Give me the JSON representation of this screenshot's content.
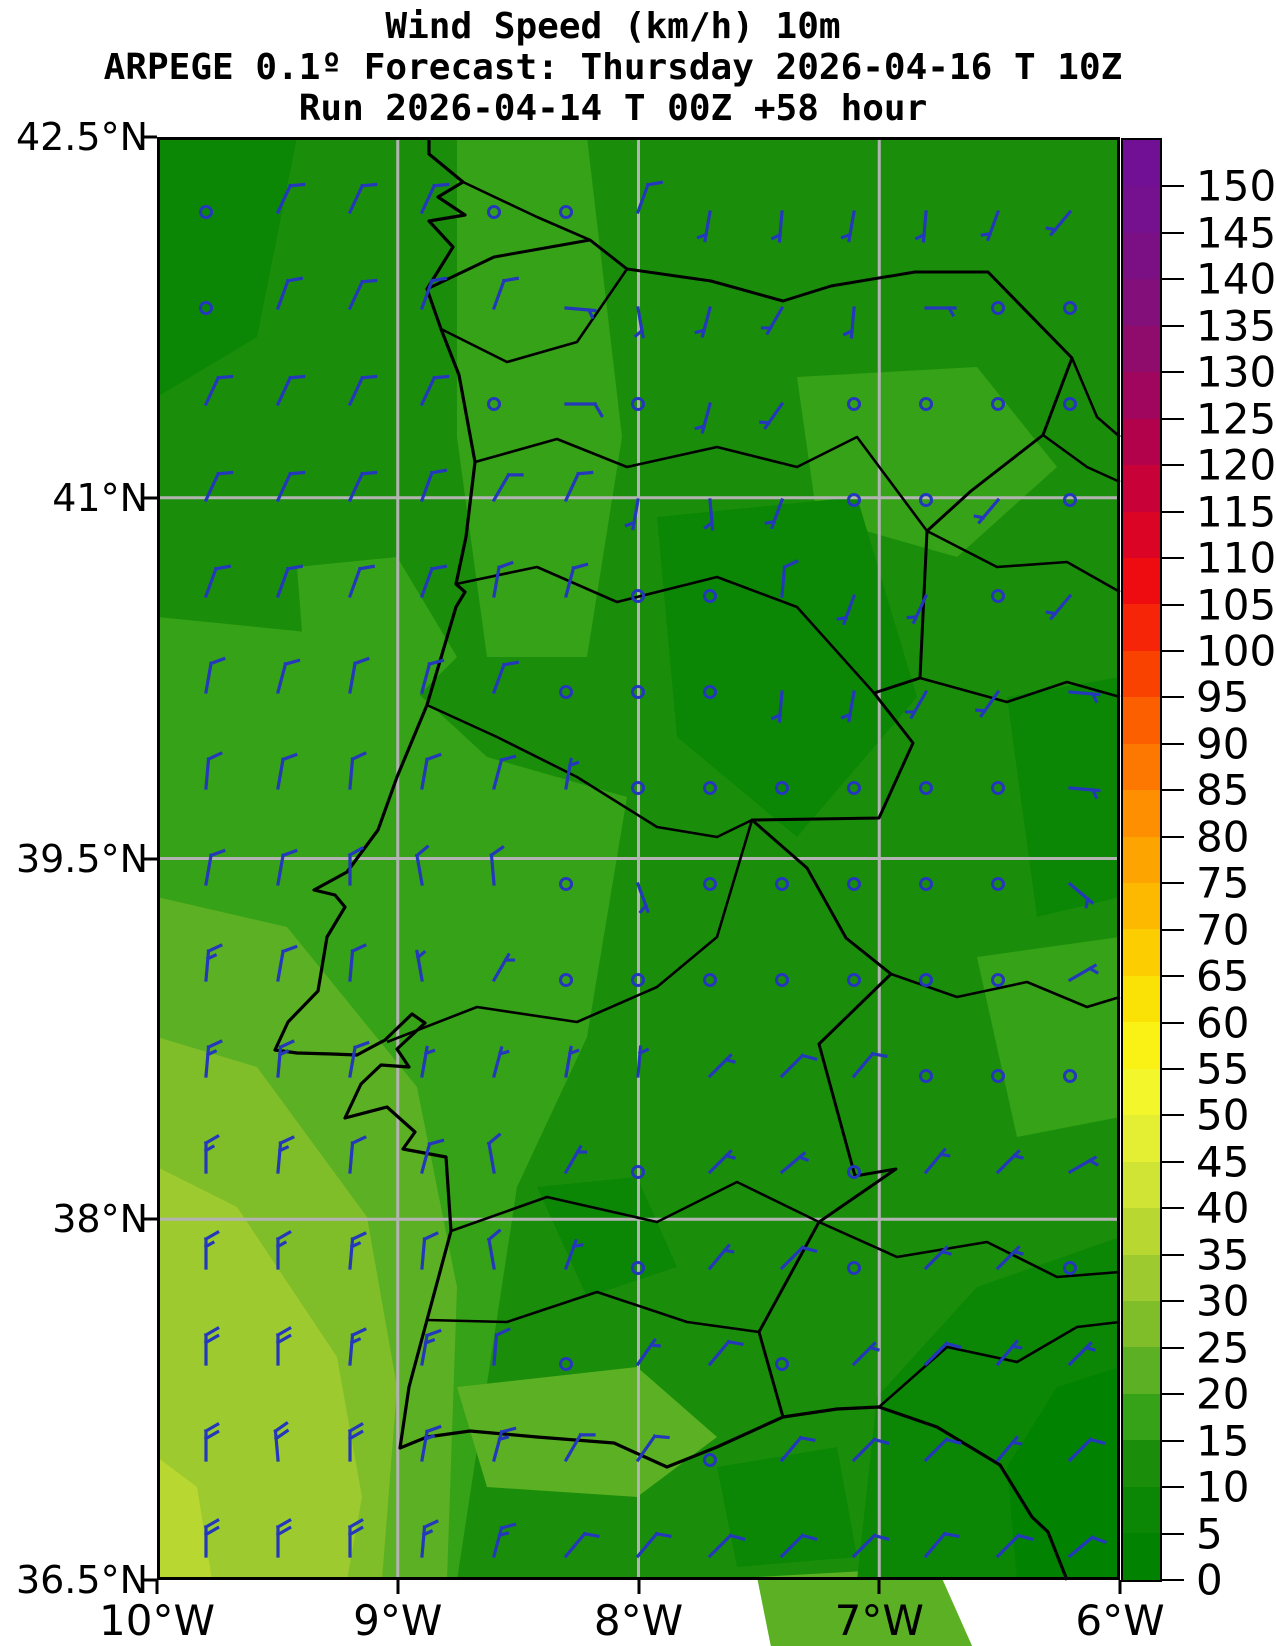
{
  "title": {
    "line1": "Wind Speed (km/h) 10m",
    "line2": "ARPEGE 0.1º Forecast: Thursday 2026-04-16 T 10Z",
    "line3": "Run 2026-04-14 T 00Z +58 hour"
  },
  "chart_data": {
    "type": "heatmap",
    "subtype": "filled-contour-map-with-wind-barbs",
    "variable": "Wind Speed 10m",
    "units": "km/h",
    "model": "ARPEGE 0.1º",
    "forecast_valid": "Thursday 2026-04-16 T 10Z",
    "run": "2026-04-14 T 00Z",
    "lead_hours": 58,
    "region": "Portugal / western Iberia",
    "grid": true,
    "legend_position": "right",
    "x_axis": {
      "lon_range": [
        -10,
        -6
      ],
      "ticks": [
        {
          "label": "10°W",
          "lon": -10
        },
        {
          "label": "9°W",
          "lon": -9
        },
        {
          "label": "8°W",
          "lon": -8
        },
        {
          "label": "7°W",
          "lon": -7
        },
        {
          "label": "6°W",
          "lon": -6
        }
      ],
      "gridline_lons": [
        -9,
        -8,
        -7
      ]
    },
    "y_axis": {
      "lat_range": [
        36.5,
        42.5
      ],
      "ticks": [
        {
          "label": "42.5°N",
          "lat": 42.5
        },
        {
          "label": "41°N",
          "lat": 41.0
        },
        {
          "label": "39.5°N",
          "lat": 39.5
        },
        {
          "label": "38°N",
          "lat": 38.0
        },
        {
          "label": "36.5°N",
          "lat": 36.5
        }
      ],
      "gridline_lats": [
        41.0,
        39.5,
        38.0
      ]
    },
    "colorbar": {
      "vmin": 0,
      "vmax": 155,
      "step": 5,
      "tick_labels": [
        "0",
        "5",
        "10",
        "15",
        "20",
        "25",
        "30",
        "35",
        "40",
        "45",
        "50",
        "55",
        "60",
        "65",
        "70",
        "75",
        "80",
        "85",
        "90",
        "95",
        "100",
        "105",
        "110",
        "115",
        "120",
        "125",
        "130",
        "135",
        "140",
        "145",
        "150"
      ],
      "tick_values": [
        0,
        5,
        10,
        15,
        20,
        25,
        30,
        35,
        40,
        45,
        50,
        55,
        60,
        65,
        70,
        75,
        80,
        85,
        90,
        95,
        100,
        105,
        110,
        115,
        120,
        125,
        130,
        135,
        140,
        145,
        150
      ],
      "colors": [
        "#018200",
        "#0b8705",
        "#1a8e0b",
        "#36a217",
        "#5cb023",
        "#7fbe29",
        "#9dca2e",
        "#b8d831",
        "#cfe434",
        "#e4ee33",
        "#f3f62a",
        "#f9f214",
        "#fbe206",
        "#fccd01",
        "#fdb900",
        "#fda400",
        "#fd8f00",
        "#fc7800",
        "#fb5f00",
        "#f94200",
        "#f72507",
        "#ef0c10",
        "#dc0424",
        "#c80139",
        "#b3024c",
        "#a0065d",
        "#8f0c6d",
        "#830f7a",
        "#7b1085",
        "#75108e",
        "#711094"
      ]
    },
    "wind_barbs": {
      "note": "direction is meteorological (degrees wind comes FROM), speed km/h; c = calm circle",
      "cols": 13,
      "rows": 15,
      "lon_start": -9.8,
      "lon_step": 0.3,
      "lat_start": 42.19,
      "lat_step": -0.4,
      "grid": [
        [
          "c",
          "25,10",
          "25,10",
          "25,10",
          "c",
          "c",
          "20,10",
          "190,5",
          "185,5",
          "190,5",
          "185,5",
          "200,5",
          "220,5"
        ],
        [
          "c",
          "20,10",
          "25,10",
          "20,10",
          "20,10",
          "95,5",
          "170,5",
          "195,5",
          "210,5",
          "185,5",
          "90,5",
          "c",
          "c"
        ],
        [
          "25,10",
          "25,10",
          "25,10",
          "25,10",
          "c",
          "90,10",
          "c",
          "195,5",
          "215,5",
          "c",
          "c",
          "c",
          "c"
        ],
        [
          "25,10",
          "25,10",
          "25,10",
          "20,10",
          "30,10",
          "25,10",
          "190,5",
          "175,5",
          "200,5",
          "c",
          "c",
          "220,5",
          "c"
        ],
        [
          "20,10",
          "20,10",
          "20,10",
          "20,10",
          "10,10",
          "15,10",
          "c",
          "c",
          "5,10",
          "200,5",
          "205,5",
          "c",
          "220,5"
        ],
        [
          "10,10",
          "15,10",
          "10,10",
          "15,10",
          "20,10",
          "c",
          "c",
          "c",
          "185,5",
          "190,5",
          "210,5",
          "215,5",
          "95,5"
        ],
        [
          "5,10",
          "10,10",
          "5,10",
          "10,10",
          "15,10",
          "10,5",
          "c",
          "c",
          "c",
          "c",
          "c",
          "c",
          "95,5"
        ],
        [
          "10,10",
          "10,10",
          "0,10",
          "350,10",
          "355,10",
          "c",
          "160,5",
          "c",
          "c",
          "c",
          "c",
          "c",
          "130,5"
        ],
        [
          "5,15",
          "10,10",
          "5,10",
          "350,5",
          "30,5",
          "c",
          "c",
          "c",
          "c",
          "c",
          "c",
          "c",
          "60,5"
        ],
        [
          "5,15",
          "5,15",
          "10,10",
          "10,5",
          "15,5",
          "10,5",
          "5,5",
          "45,5",
          "45,10",
          "40,10",
          "c",
          "c",
          "c"
        ],
        [
          "0,15",
          "5,15",
          "5,10",
          "15,10",
          "350,10",
          "30,5",
          "c",
          "45,5",
          "50,5",
          "c",
          "40,5",
          "45,5",
          "60,5"
        ],
        [
          "0,15",
          "0,15",
          "5,15",
          "5,10",
          "350,10",
          "20,5",
          "c",
          "40,5",
          "45,10",
          "c",
          "45,5",
          "45,5",
          "c"
        ],
        [
          "0,20",
          "0,20",
          "5,15",
          "10,15",
          "5,10",
          "c",
          "35,5",
          "40,10",
          "c",
          "45,5",
          "45,10",
          "40,5",
          "45,5"
        ],
        [
          "0,20",
          "355,20",
          "0,20",
          "10,15",
          "15,15",
          "30,10",
          "35,10",
          "c",
          "40,10",
          "45,10",
          "45,10",
          "40,5",
          "45,10"
        ],
        [
          "0,20",
          "0,20",
          "0,20",
          "5,15",
          "15,15",
          "40,10",
          "40,10",
          "45,10",
          "45,10",
          "45,10",
          "40,10",
          "45,10",
          "50,10"
        ]
      ]
    },
    "map_fill_levels_used_kmh": [
      [
        0,
        5
      ],
      [
        5,
        10
      ],
      [
        10,
        15
      ],
      [
        15,
        20
      ],
      [
        20,
        25
      ],
      [
        25,
        30
      ],
      [
        30,
        35
      ],
      [
        35,
        40
      ]
    ]
  },
  "colors": {
    "barb_blue": "#2438bb",
    "gridline_gray": "#b3b3b3",
    "boundary_black": "#000000",
    "background_white": "#ffffff"
  }
}
